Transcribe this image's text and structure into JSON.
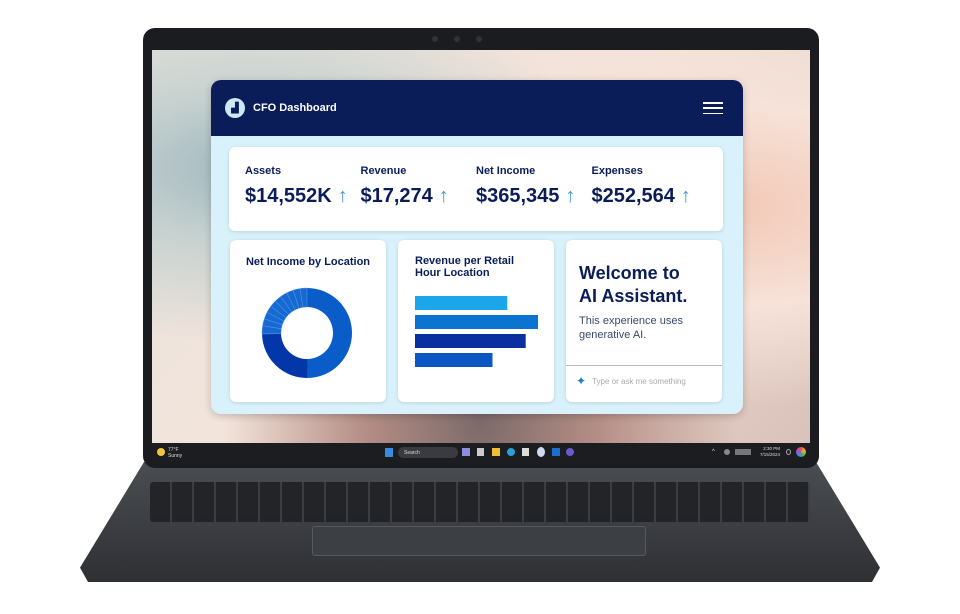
{
  "app": {
    "title": "CFO Dashboard",
    "logo_icon": "chart-icon",
    "menu_icon": "hamburger-icon"
  },
  "kpis": [
    {
      "label": "Assets",
      "value": "$14,552K",
      "trend": "up"
    },
    {
      "label": "Revenue",
      "value": "$17,274",
      "trend": "up"
    },
    {
      "label": "Net Income",
      "value": "$365,345",
      "trend": "up"
    },
    {
      "label": "Expenses",
      "value": "$252,564",
      "trend": "up"
    }
  ],
  "donut": {
    "title": "Net Income by Location",
    "segments": [
      0.5,
      0.25,
      0.03,
      0.025,
      0.025,
      0.025,
      0.025,
      0.025,
      0.025,
      0.025,
      0.025,
      0.025
    ],
    "colors": [
      "#0a5cc9",
      "#0336a8",
      "#1669d2"
    ]
  },
  "bars": {
    "title_line1": "Revenue per Retail",
    "title_line2": "Hour Location",
    "values": [
      0.75,
      1.0,
      0.9,
      0.63
    ],
    "colors": [
      "#1aa6e8",
      "#0b73d0",
      "#0a2fa0",
      "#0a57c4"
    ]
  },
  "assistant": {
    "title_line1": "Welcome to",
    "title_line2": "AI Assistant.",
    "subtitle_line1": "This experience uses",
    "subtitle_line2": "generative AI.",
    "placeholder": "Type or ask me something",
    "icon": "sparkle-icon"
  },
  "taskbar": {
    "weather_temp": "77°F",
    "weather_desc": "Sunny",
    "search_label": "Search",
    "time": "2:30 PM",
    "date": "7/15/2024"
  }
}
